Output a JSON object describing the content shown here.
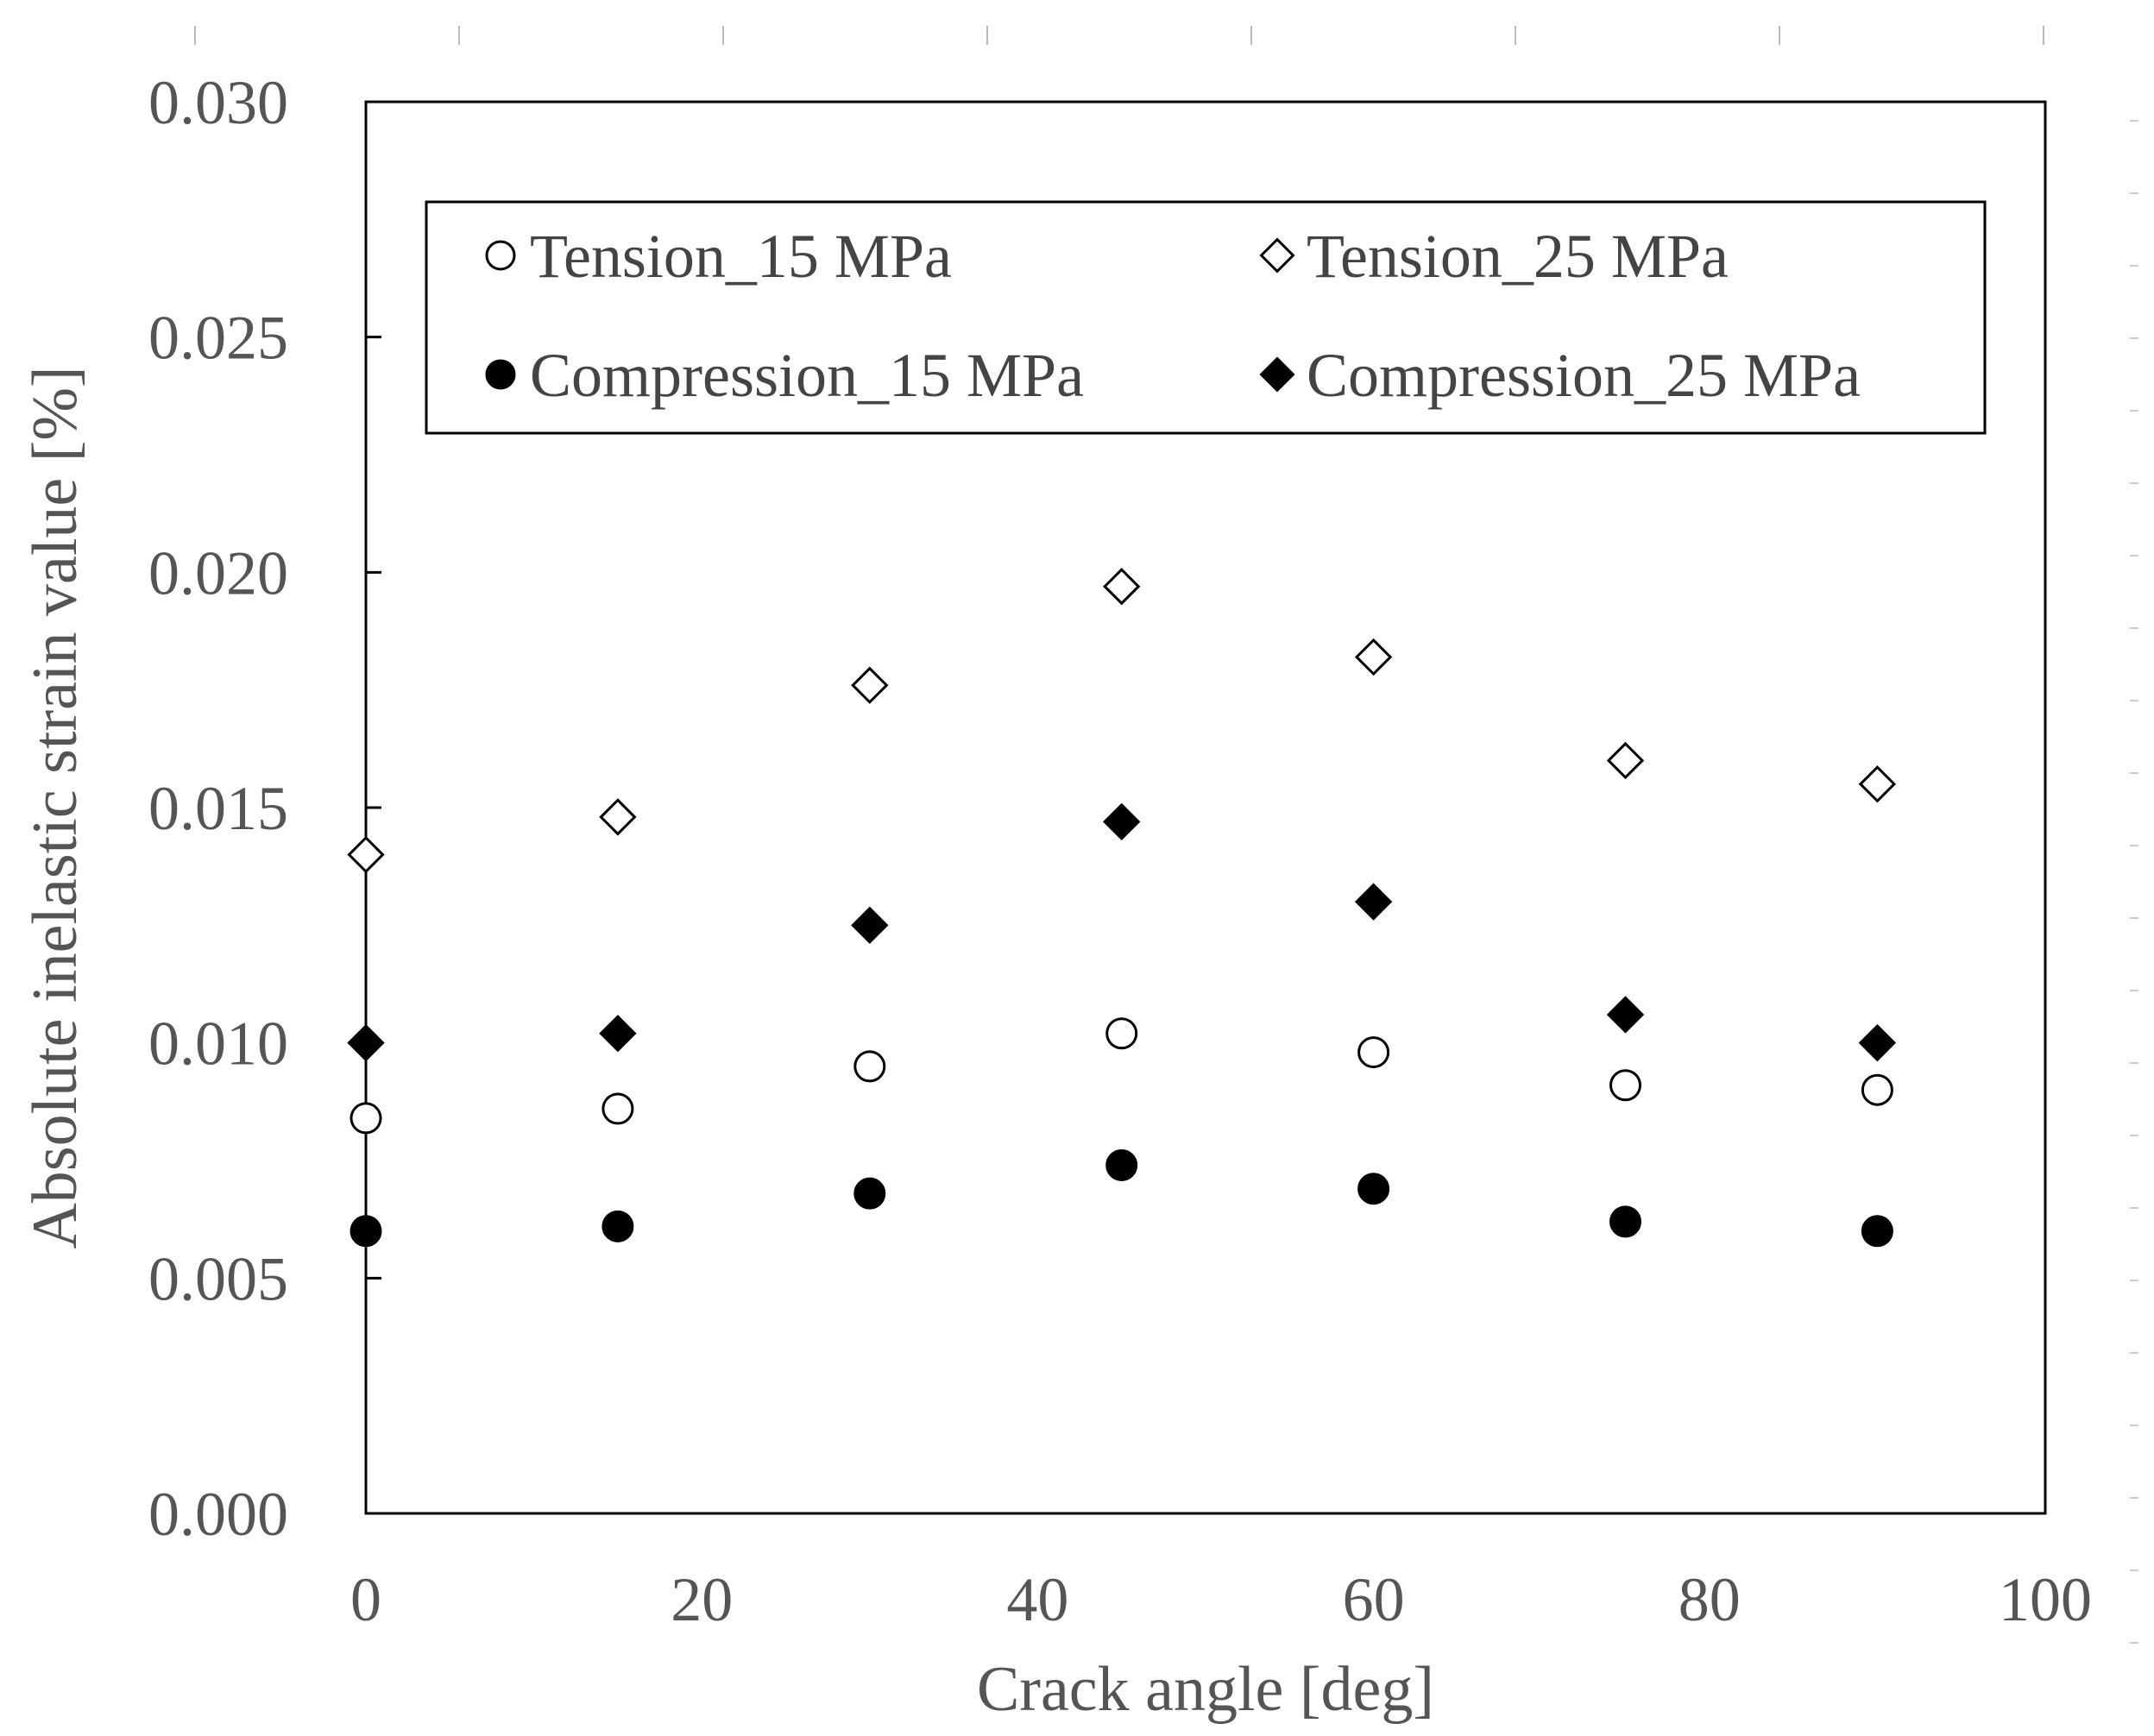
{
  "chart_data": {
    "type": "scatter",
    "title": "",
    "xlabel": "Crack angle [deg]",
    "ylabel": "Absolute inelastic strain value [%]",
    "xlim": [
      0,
      100
    ],
    "ylim": [
      0,
      0.03
    ],
    "xticks": [
      "0",
      "20",
      "40",
      "60",
      "80",
      "100"
    ],
    "yticks": [
      "0.000",
      "0.005",
      "0.010",
      "0.015",
      "0.020",
      "0.025",
      "0.030"
    ],
    "x": [
      0,
      15,
      30,
      45,
      60,
      75,
      90
    ],
    "legend_position": "top",
    "series": [
      {
        "name": "Tension_15 MPa",
        "marker": "circle-open",
        "values": [
          0.0084,
          0.0086,
          0.0095,
          0.0102,
          0.0098,
          0.0091,
          0.009
        ]
      },
      {
        "name": "Tension_25 MPa",
        "marker": "diamond-open",
        "values": [
          0.014,
          0.0148,
          0.0176,
          0.0197,
          0.0182,
          0.016,
          0.0155
        ]
      },
      {
        "name": "Compression_15 MPa",
        "marker": "circle-filled",
        "values": [
          0.006,
          0.0061,
          0.0068,
          0.0074,
          0.0069,
          0.0062,
          0.006
        ]
      },
      {
        "name": "Compression_25 MPa",
        "marker": "diamond-filled",
        "values": [
          0.01,
          0.0102,
          0.0125,
          0.0147,
          0.013,
          0.0106,
          0.01
        ]
      }
    ]
  }
}
